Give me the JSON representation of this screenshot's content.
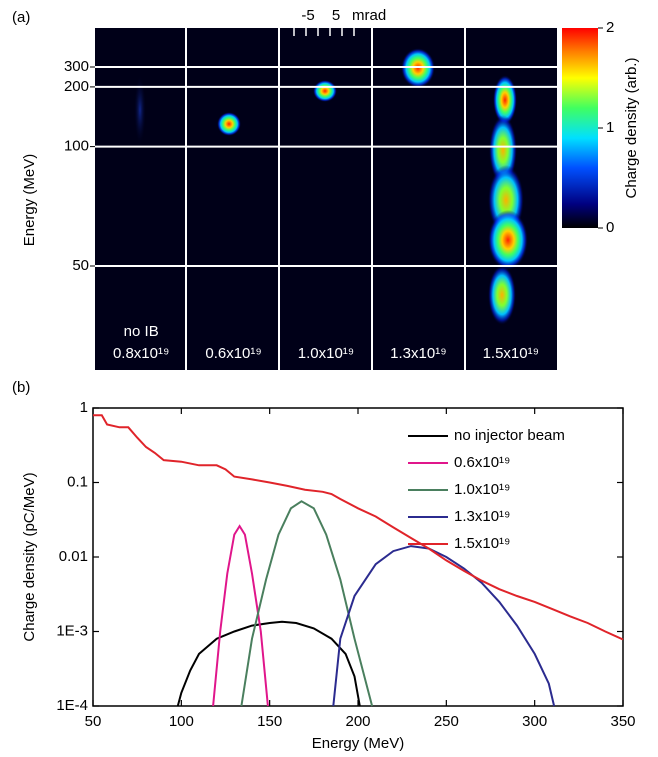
{
  "panel_a": {
    "panel_label": "(a)",
    "y_label": "Energy (MeV)",
    "yticks": [
      300,
      200,
      100,
      50
    ],
    "scale_labels": [
      "-5",
      "5",
      "mrad"
    ],
    "images": [
      {
        "lines": [
          "no IB",
          "0.8x10¹⁹"
        ]
      },
      {
        "lines": [
          "0.6x10¹⁹"
        ]
      },
      {
        "lines": [
          "1.0x10¹⁹"
        ]
      },
      {
        "lines": [
          "1.3x10¹⁹"
        ]
      },
      {
        "lines": [
          "1.5x10¹⁹"
        ]
      }
    ],
    "colorbar_label": "Charge density (arb.)",
    "clim": [
      0,
      2
    ],
    "cticks": [
      0,
      1,
      2
    ]
  },
  "chart_data": {
    "type": "line",
    "panel_label": "(b)",
    "x_label": "Energy (MeV)",
    "y_label": "Charge density (pC/MeV)",
    "xlim": [
      50,
      350
    ],
    "ylim": [
      0.0001,
      1
    ],
    "log_y": true,
    "xticks": [
      50,
      100,
      150,
      200,
      250,
      300,
      350
    ],
    "yticks": [
      1,
      0.1,
      0.01,
      {
        "value": 0.001,
        "label": "1E-3"
      },
      {
        "value": 0.0001,
        "label": "1E-4"
      }
    ],
    "legend": "upper right",
    "series": [
      {
        "name": "no injector beam",
        "color": "#000000",
        "x": [
          98,
          100,
          105,
          110,
          120,
          130,
          140,
          150,
          157,
          165,
          175,
          185,
          193,
          198,
          201
        ],
        "values": [
          0.0001,
          0.00015,
          0.0003,
          0.0005,
          0.0008,
          0.001,
          0.0012,
          0.0013,
          0.00135,
          0.0013,
          0.0011,
          0.0008,
          0.0005,
          0.00025,
          0.0001
        ]
      },
      {
        "name": "0.6x10¹⁹",
        "color": "#e0168b",
        "x": [
          118,
          122,
          126,
          130,
          133,
          136,
          140,
          145,
          149
        ],
        "values": [
          0.0001,
          0.001,
          0.006,
          0.02,
          0.026,
          0.02,
          0.006,
          0.001,
          0.0001
        ]
      },
      {
        "name": "1.0x10¹⁹",
        "color": "#4a7f5e",
        "x": [
          134,
          140,
          148,
          155,
          162,
          168,
          175,
          182,
          190,
          198,
          208
        ],
        "values": [
          0.0001,
          0.0008,
          0.005,
          0.02,
          0.045,
          0.056,
          0.045,
          0.02,
          0.005,
          0.0008,
          0.0001
        ]
      },
      {
        "name": "1.3x10¹⁹",
        "color": "#2b2b8f",
        "x": [
          186,
          190,
          198,
          210,
          220,
          230,
          240,
          250,
          260,
          270,
          280,
          290,
          300,
          308,
          311
        ],
        "values": [
          0.0001,
          0.0008,
          0.003,
          0.008,
          0.012,
          0.014,
          0.013,
          0.01,
          0.007,
          0.0045,
          0.0025,
          0.0012,
          0.0005,
          0.0002,
          0.0001
        ]
      },
      {
        "name": "1.5x10¹⁹",
        "color": "#e0242a",
        "x": [
          50,
          55,
          58,
          65,
          70,
          75,
          80,
          85,
          90,
          100,
          110,
          120,
          125,
          130,
          140,
          150,
          160,
          170,
          180,
          185,
          190,
          200,
          210,
          220,
          230,
          240,
          250,
          260,
          270,
          280,
          290,
          300,
          310,
          320,
          330,
          340,
          350
        ],
        "values": [
          0.8,
          0.8,
          0.6,
          0.55,
          0.55,
          0.4,
          0.3,
          0.25,
          0.2,
          0.19,
          0.17,
          0.17,
          0.15,
          0.12,
          0.11,
          0.1,
          0.09,
          0.08,
          0.075,
          0.07,
          0.06,
          0.045,
          0.035,
          0.025,
          0.018,
          0.013,
          0.009,
          0.0065,
          0.0048,
          0.0037,
          0.003,
          0.0025,
          0.002,
          0.0016,
          0.0013,
          0.001,
          0.00078
        ]
      }
    ]
  }
}
